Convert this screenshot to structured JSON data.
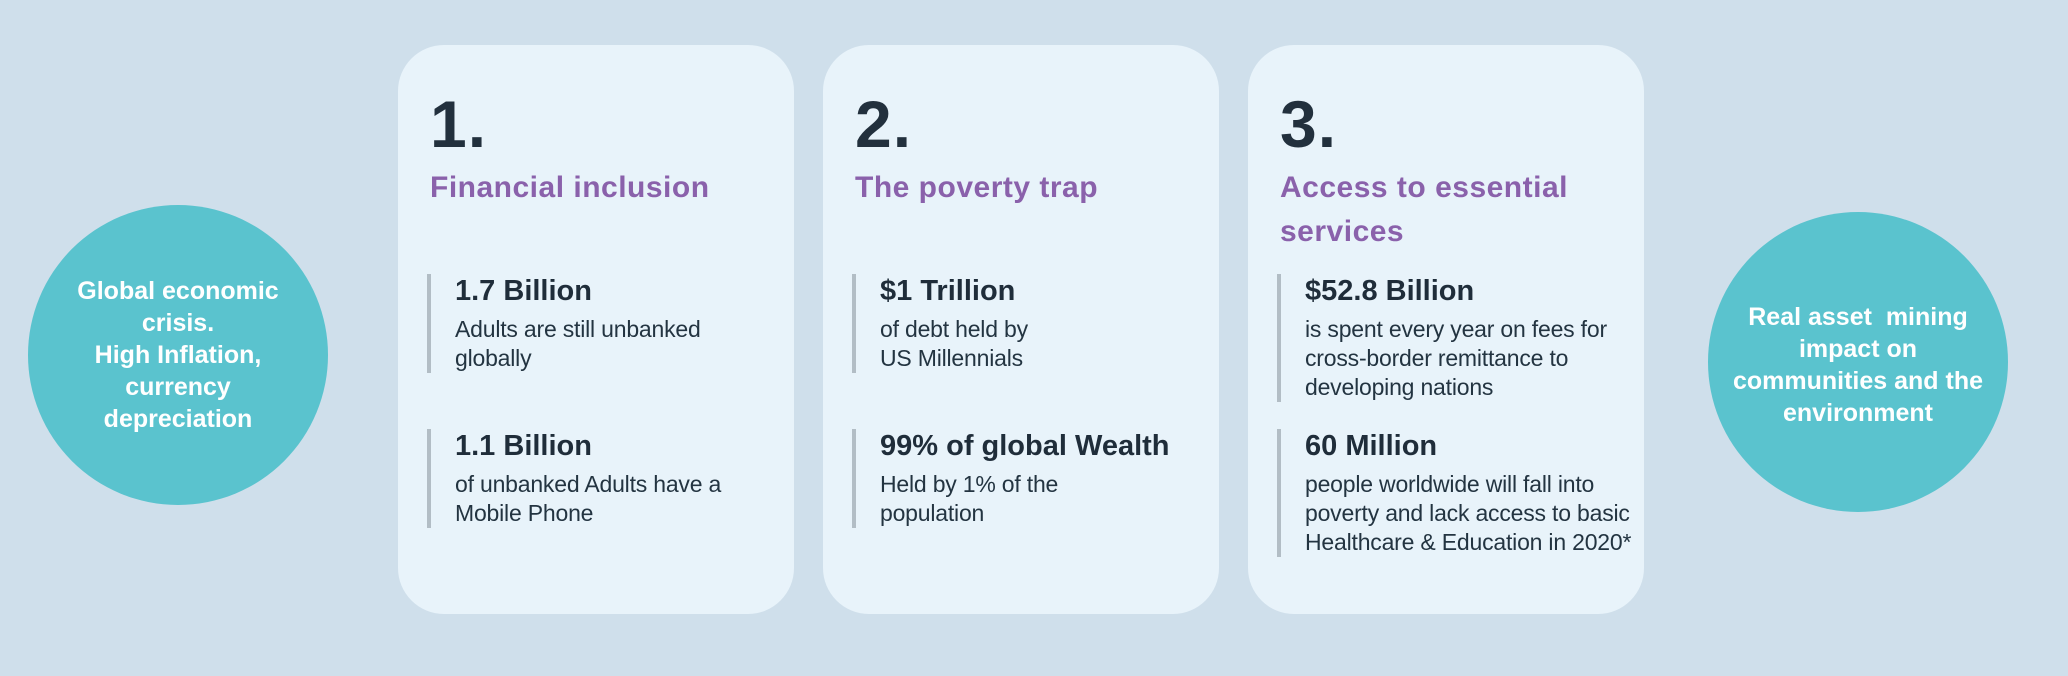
{
  "colors": {
    "page_background": "#cfdfeb",
    "card_background": "#e8f3fa",
    "accent_teal": "#5ac3ce",
    "accent_purple": "#8a61ab",
    "dark_navy": "#1f2d3a",
    "stat_bar_gray": "#b2bdc5",
    "circle_text": "#ffffff"
  },
  "left_circle": {
    "line_1": "Global economic crisis.",
    "line_2": "High Inflation, currency depreciation"
  },
  "right_circle": {
    "lines": [
      "Real asset  mining",
      "impact on",
      "communities and the",
      "environment"
    ]
  },
  "cards": [
    {
      "number": "1.",
      "title_lines": [
        "Financial inclusion"
      ],
      "stats": [
        {
          "value": "1.7 Billion",
          "desc_lines": [
            "Adults are still unbanked",
            "globally"
          ]
        },
        {
          "value": "1.1 Billion",
          "desc_lines": [
            "of unbanked Adults have a",
            "Mobile Phone"
          ]
        }
      ]
    },
    {
      "number": "2.",
      "title_lines": [
        "The poverty trap"
      ],
      "stats": [
        {
          "value": "$1 Trillion",
          "desc_lines": [
            "of debt held by",
            "US Millennials"
          ]
        },
        {
          "value": "99% of global Wealth",
          "desc_lines": [
            "Held by 1% of the",
            "population"
          ]
        }
      ]
    },
    {
      "number": "3.",
      "title_lines": [
        "Access to essential",
        "services"
      ],
      "stats": [
        {
          "value": "$52.8 Billion",
          "desc_lines": [
            "is spent every year on fees for",
            "cross-border remittance to",
            "developing nations"
          ]
        },
        {
          "value": "60 Million",
          "desc_lines": [
            "people worldwide will fall into",
            "poverty and lack access to basic",
            "Healthcare & Education in 2020*"
          ]
        }
      ]
    }
  ]
}
